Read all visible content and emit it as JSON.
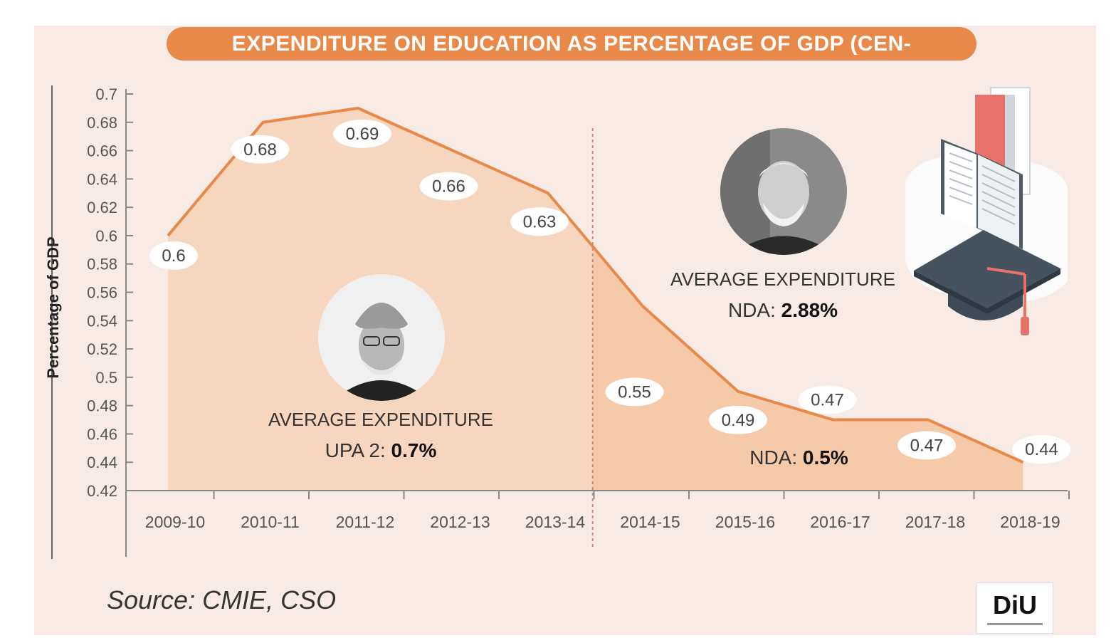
{
  "title": "EXPENDITURE ON EDUCATION AS PERCENTAGE OF GDP (CEN-",
  "source": "Source: CMIE, CSO",
  "logo": "DiU",
  "colors": {
    "accent": "#e8894a",
    "area": "#f6c9a9",
    "background": "#f8ebe6"
  },
  "chart_data": {
    "type": "area",
    "categories": [
      "2009-10",
      "2010-11",
      "2011-12",
      "2012-13",
      "2013-14",
      "2014-15",
      "2015-16",
      "2016-17",
      "2017-18",
      "2018-19"
    ],
    "values": [
      0.6,
      0.68,
      0.69,
      0.66,
      0.63,
      0.55,
      0.49,
      0.47,
      0.47,
      0.44
    ],
    "data_labels": [
      "0.6",
      "0.68",
      "0.69",
      "0.66",
      "0.63",
      "0.55",
      "0.49",
      "0.47",
      "0.47",
      "0.44"
    ],
    "ylabel": "Percentage of GDP",
    "xlabel": "",
    "ylim": [
      0.42,
      0.7
    ],
    "yticks": [
      "0.42",
      "0.44",
      "0.46",
      "0.48",
      "0.5",
      "0.52",
      "0.54",
      "0.56",
      "0.58",
      "0.6",
      "0.62",
      "0.64",
      "0.66",
      "0.68",
      "0.7"
    ],
    "grid": false,
    "legend": "none"
  },
  "annotations": {
    "upa": {
      "heading": "AVERAGE EXPENDITURE",
      "prefix": "UPA 2:",
      "value": "0.7%"
    },
    "nda_avg": {
      "heading": "AVERAGE EXPENDITURE",
      "prefix": "NDA:",
      "value": "2.88%"
    },
    "nda": {
      "prefix": "NDA:",
      "value": "0.5%"
    }
  },
  "icons": {
    "books": "books-icon",
    "cap": "graduation-cap-icon"
  }
}
